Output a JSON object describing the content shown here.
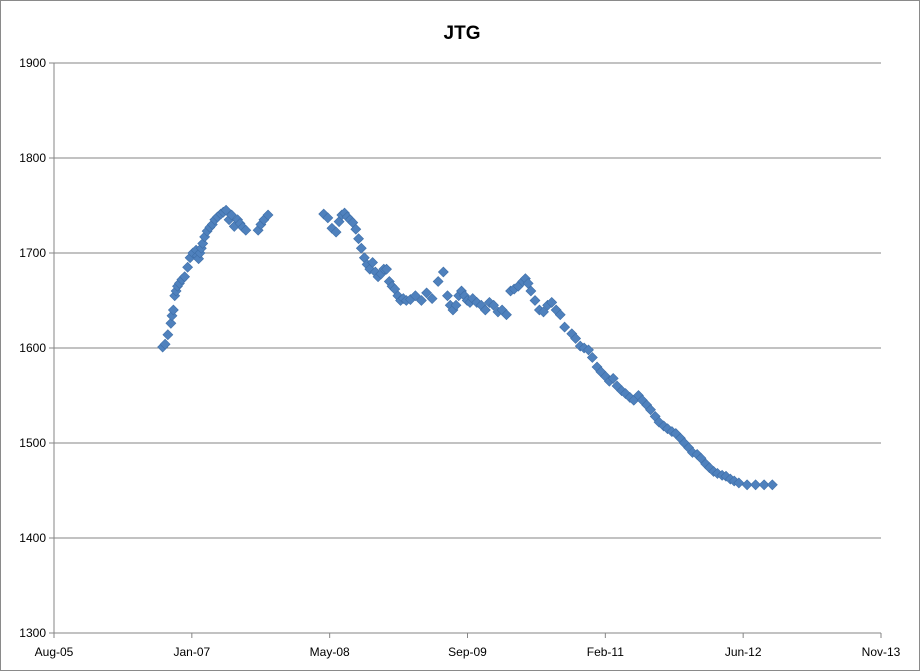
{
  "chart_data": {
    "type": "scatter",
    "title": "JTG",
    "xlabel": "",
    "ylabel": "",
    "ylim": [
      1300,
      1900
    ],
    "yticks": [
      1300,
      1400,
      1500,
      1600,
      1700,
      1800,
      1900
    ],
    "xlim": [
      "2005-08-01",
      "2013-11-01"
    ],
    "xticks": [
      "Aug-05",
      "Jan-07",
      "May-08",
      "Sep-09",
      "Feb-11",
      "Jun-12",
      "Nov-13"
    ],
    "grid": "horizontal",
    "marker": "diamond",
    "color": "#4f81bd",
    "series": [
      {
        "x": [
          "2006-09-01",
          "2006-09-10",
          "2006-09-20",
          "2006-10-01",
          "2006-10-05",
          "2006-10-10",
          "2006-10-15",
          "2006-10-20",
          "2006-10-25",
          "2006-11-01",
          "2006-11-10",
          "2006-11-20",
          "2006-12-01",
          "2006-12-10",
          "2006-12-20",
          "2007-01-01",
          "2007-01-05",
          "2007-01-10",
          "2007-01-15",
          "2007-01-20",
          "2007-01-25",
          "2007-02-01",
          "2007-02-10",
          "2007-02-20",
          "2007-03-01",
          "2007-03-10",
          "2007-03-20",
          "2007-04-01",
          "2007-04-10",
          "2007-04-20",
          "2007-05-01",
          "2007-05-10",
          "2007-05-20",
          "2007-06-01",
          "2007-06-10",
          "2007-06-20",
          "2007-07-01",
          "2007-08-15",
          "2007-08-25",
          "2007-09-05",
          "2007-09-20",
          "2008-04-10",
          "2008-04-25",
          "2008-05-10",
          "2008-05-25",
          "2008-06-05",
          "2008-06-15",
          "2008-06-25",
          "2008-07-05",
          "2008-07-15",
          "2008-07-25",
          "2008-08-05",
          "2008-08-15",
          "2008-08-25",
          "2008-09-05",
          "2008-09-15",
          "2008-09-25",
          "2008-10-05",
          "2008-10-15",
          "2008-10-25",
          "2008-11-05",
          "2008-11-15",
          "2008-11-25",
          "2008-12-05",
          "2008-12-15",
          "2008-12-25",
          "2009-01-05",
          "2009-01-15",
          "2009-01-25",
          "2009-02-05",
          "2009-02-20",
          "2009-03-10",
          "2009-04-01",
          "2009-04-20",
          "2009-05-10",
          "2009-06-01",
          "2009-06-20",
          "2009-07-05",
          "2009-07-15",
          "2009-07-25",
          "2009-08-05",
          "2009-08-15",
          "2009-08-25",
          "2009-09-05",
          "2009-09-15",
          "2009-09-25",
          "2009-10-05",
          "2009-10-20",
          "2009-11-05",
          "2009-11-20",
          "2009-12-05",
          "2009-12-20",
          "2010-01-05",
          "2010-01-20",
          "2010-02-05",
          "2010-02-20",
          "2010-03-05",
          "2010-03-20",
          "2010-04-05",
          "2010-04-15",
          "2010-04-25",
          "2010-05-05",
          "2010-05-20",
          "2010-06-05",
          "2010-06-20",
          "2010-07-05",
          "2010-07-20",
          "2010-08-05",
          "2010-08-20",
          "2010-09-05",
          "2010-10-01",
          "2010-10-15",
          "2010-11-01",
          "2010-11-15",
          "2010-12-01",
          "2010-12-15",
          "2011-01-01",
          "2011-01-15",
          "2011-02-01",
          "2011-02-15",
          "2011-03-01",
          "2011-03-15",
          "2011-04-01",
          "2011-04-15",
          "2011-05-01",
          "2011-05-15",
          "2011-06-01",
          "2011-06-15",
          "2011-07-01",
          "2011-07-15",
          "2011-08-01",
          "2011-08-15",
          "2011-09-01",
          "2011-09-15",
          "2011-10-01",
          "2011-10-15",
          "2011-11-01",
          "2011-11-15",
          "2011-12-01",
          "2011-12-15",
          "2012-01-01",
          "2012-01-15",
          "2012-02-01",
          "2012-02-15",
          "2012-03-01",
          "2012-03-15",
          "2012-04-01",
          "2012-04-15",
          "2012-05-01",
          "2012-05-15",
          "2012-06-01",
          "2012-07-01",
          "2012-08-01",
          "2012-09-01",
          "2012-10-01"
        ],
        "y": [
          1601,
          1604,
          1614,
          1626,
          1634,
          1640,
          1655,
          1660,
          1665,
          1668,
          1672,
          1675,
          1685,
          1695,
          1700,
          1703,
          1697,
          1694,
          1700,
          1705,
          1710,
          1717,
          1723,
          1727,
          1730,
          1735,
          1738,
          1741,
          1743,
          1745,
          1735,
          1740,
          1728,
          1735,
          1731,
          1727,
          1724,
          1724,
          1730,
          1735,
          1740,
          1741,
          1737,
          1726,
          1722,
          1733,
          1740,
          1742,
          1738,
          1735,
          1732,
          1725,
          1715,
          1705,
          1695,
          1688,
          1683,
          1690,
          1680,
          1675,
          1678,
          1683,
          1683,
          1670,
          1665,
          1662,
          1655,
          1650,
          1652,
          1650,
          1651,
          1655,
          1650,
          1658,
          1652,
          1670,
          1680,
          1655,
          1645,
          1640,
          1645,
          1655,
          1660,
          1655,
          1650,
          1648,
          1652,
          1648,
          1645,
          1640,
          1648,
          1645,
          1638,
          1640,
          1635,
          1660,
          1662,
          1665,
          1670,
          1673,
          1668,
          1660,
          1650,
          1640,
          1638,
          1645,
          1648,
          1640,
          1635,
          1622,
          1615,
          1610,
          1602,
          1600,
          1598,
          1590,
          1580,
          1575,
          1570,
          1565,
          1568,
          1560,
          1555,
          1552,
          1548,
          1545,
          1550,
          1545,
          1540,
          1535,
          1528,
          1522,
          1518,
          1515,
          1512,
          1510,
          1505,
          1500,
          1495,
          1490,
          1488,
          1484,
          1478,
          1474,
          1470,
          1468,
          1466,
          1465,
          1462,
          1460,
          1458,
          1456,
          1456,
          1456,
          1456
        ]
      }
    ]
  }
}
